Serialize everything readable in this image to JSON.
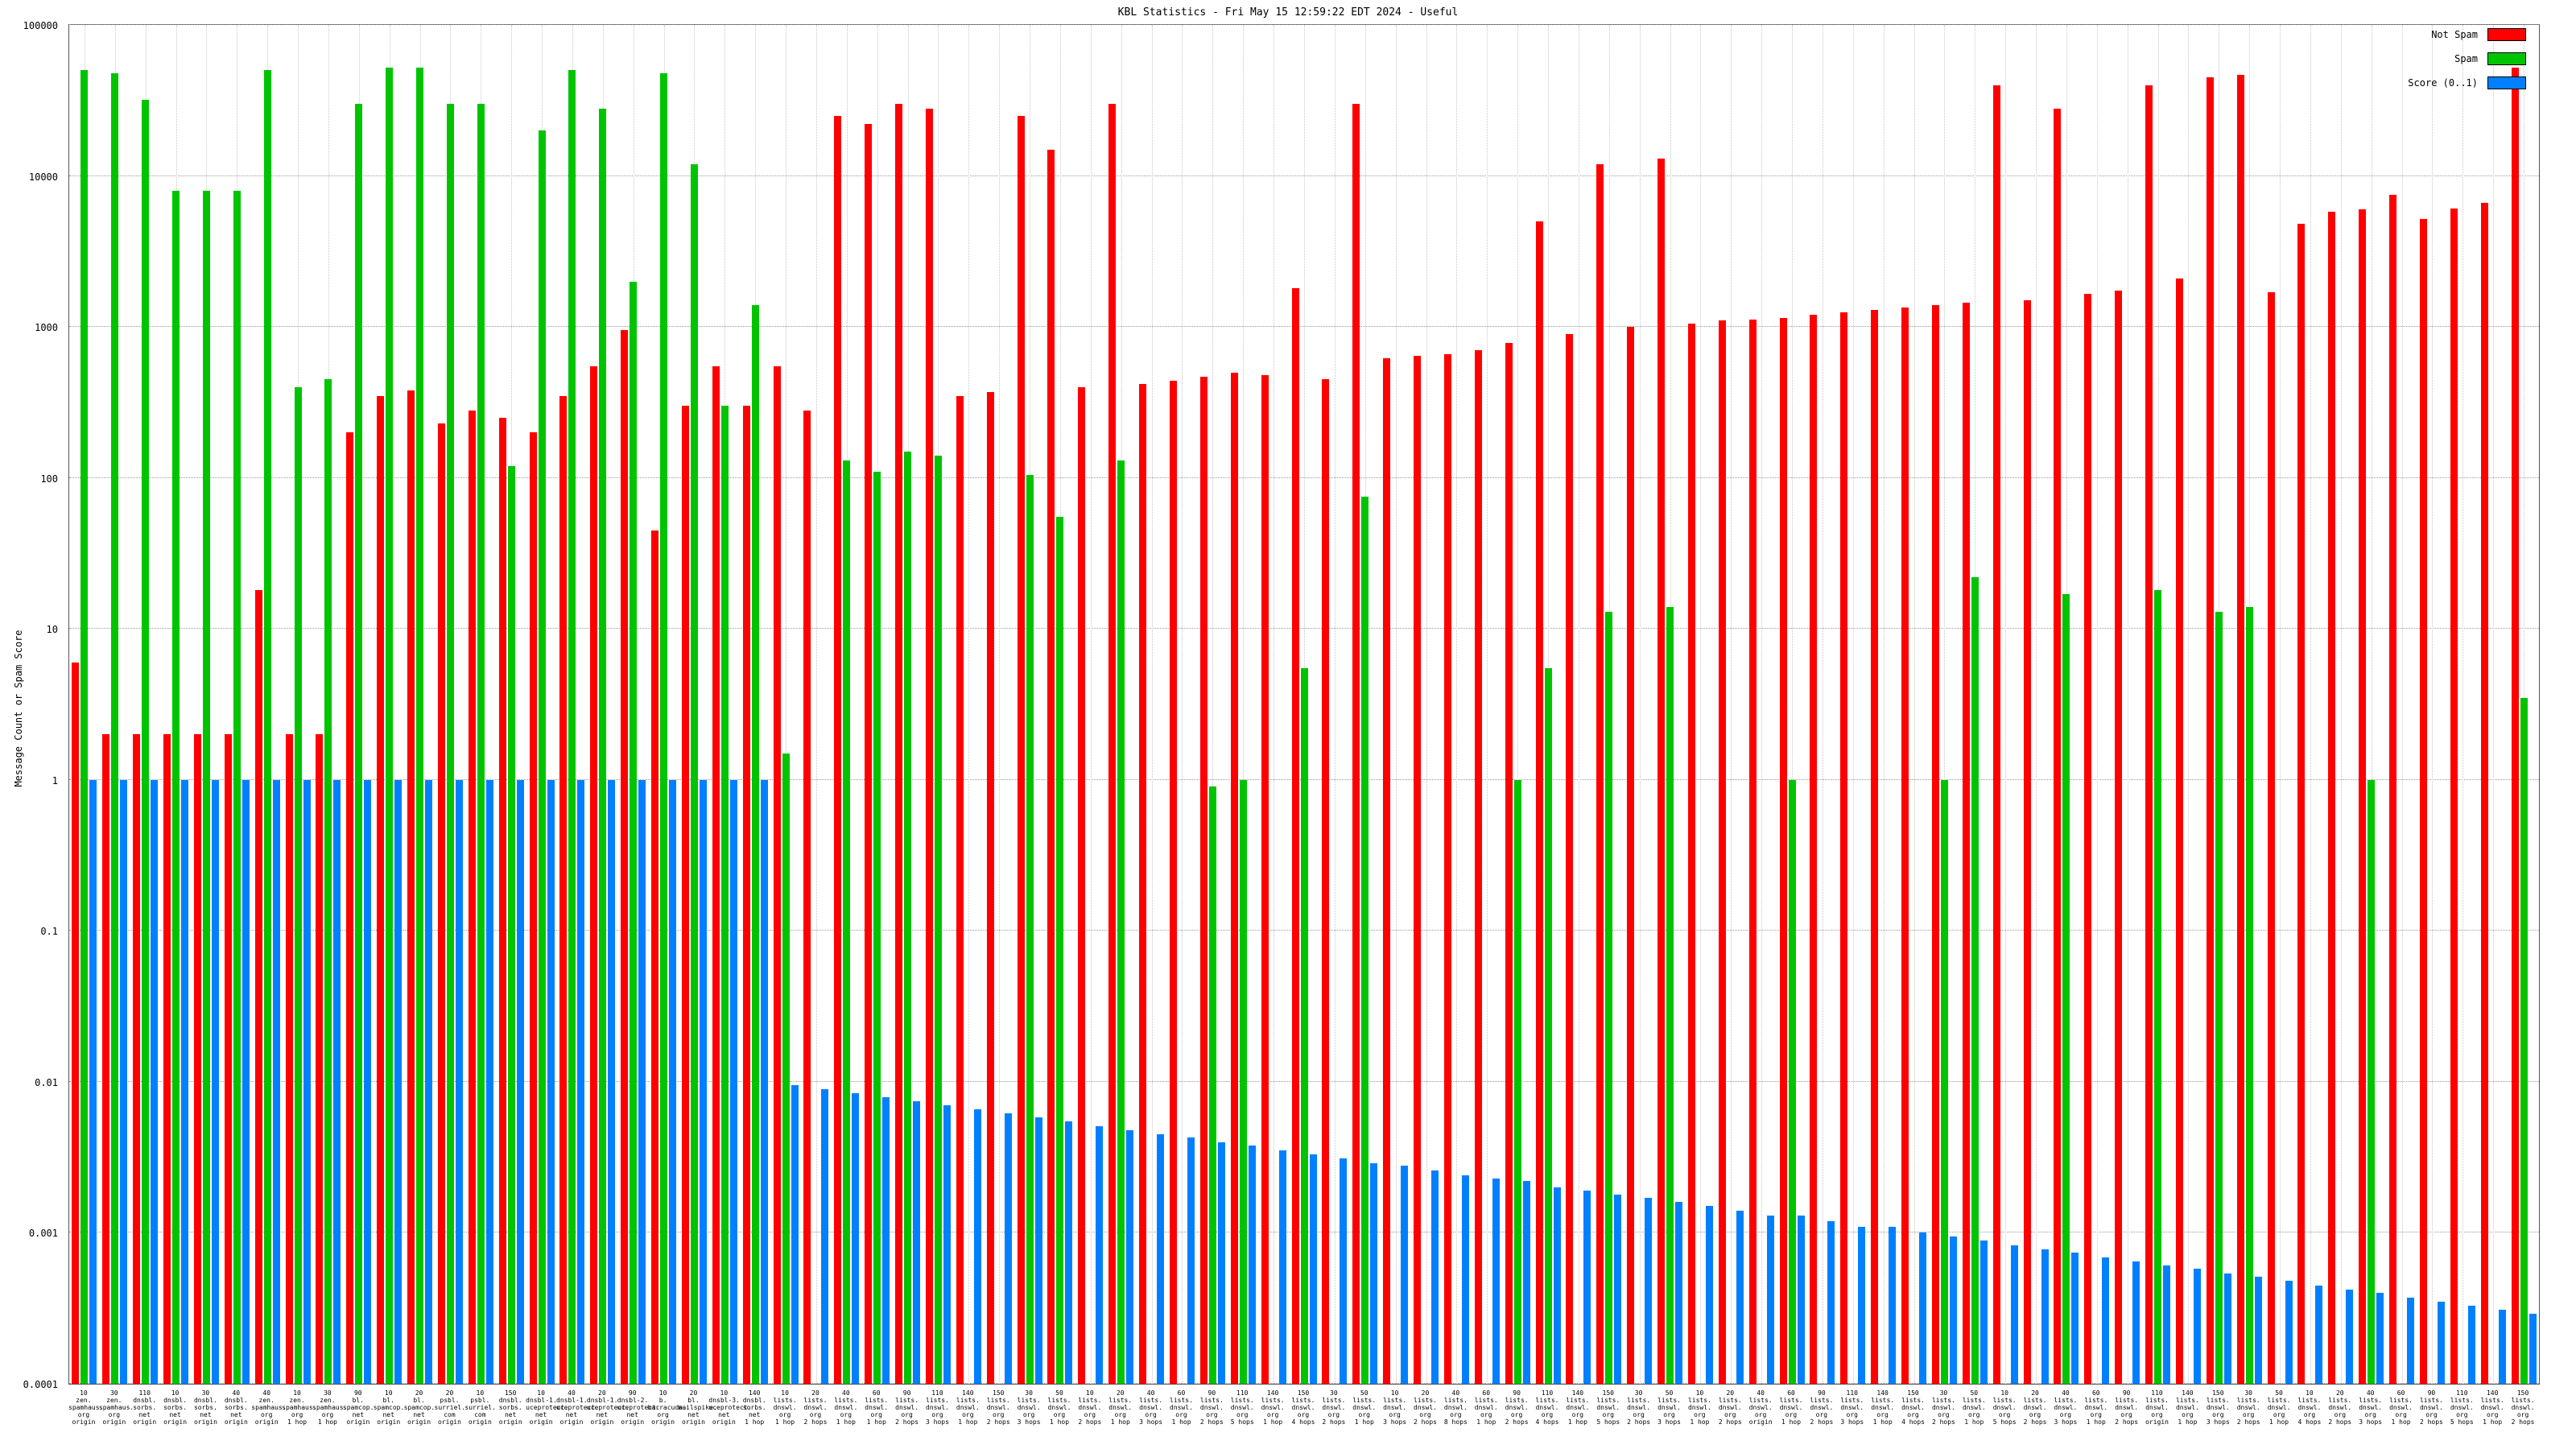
{
  "title": "KBL Statistics - Fri May 15 12:59:22 EDT 2024 - Useful",
  "legend": [
    {
      "label": "Not Spam",
      "color": "#ff0000"
    },
    {
      "label": "Spam",
      "color": "#00c400"
    },
    {
      "label": "Score (0..1)",
      "color": "#0080ff"
    }
  ],
  "chart_data": {
    "type": "bar",
    "title": "KBL Statistics - Fri May 15 12:59:22 EDT 2024 - Useful",
    "xlabel": "",
    "ylabel": "Message Count or Spam Score",
    "y_scale": "log",
    "ylim": [
      0.0001,
      100000
    ],
    "y_ticks": [
      "100000",
      "10000",
      "1000",
      "100",
      "10",
      "1",
      "0.1",
      "0.01",
      "0.001",
      "0.0001"
    ],
    "grid": "dotted",
    "legend_position": "top-right",
    "categories": [
      "10|zen.|spamhaus.|org|origin",
      "30|zen.|spamhaus.|org|origin",
      "110|dnsbl.|sorbs.|net|origin",
      "10|dnsbl.|sorbs.|net|origin",
      "30|dnsbl.|sorbs.|net|origin",
      "40|dnsbl.|sorbs.|net|origin",
      "40|zen.|spamhaus.|org|origin",
      "10|zen.|spamhaus.|org|1 hop",
      "30|zen.|spamhaus.|org|1 hop",
      "90|bl.|spamcop.|net|origin",
      "10|bl.|spamcop.|net|origin",
      "20|bl.|spamcop.|net|origin",
      "20|psbl.|surriel.|com|origin",
      "10|psbl.|surriel.|com|origin",
      "150|dnsbl.|sorbs.|net|origin",
      "10|dnsbl-1.|uceprotect.|net|origin",
      "40|dnsbl-1.|uceprotect.|net|origin",
      "20|dnsbl-1.|uceprotect.|net|origin",
      "90|dnsbl-2.|uceprotect.|net|origin",
      "10|b.|barracuda.|org|origin",
      "20|bl.|mailspike.|net|origin",
      "10|dnsbl-3.|uceprotect.|net|origin",
      "140|dnsbl.|sorbs.|net|1 hop",
      "10|lists.|dnswl.|org|1 hop",
      "20|lists.|dnswl.|org|2 hops",
      "40|lists.|dnswl.|org|1 hop",
      "60|lists.|dnswl.|org|1 hop",
      "90|lists.|dnswl.|org|2 hops",
      "110|lists.|dnswl.|org|3 hops",
      "140|lists.|dnswl.|org|1 hop",
      "150|lists.|dnswl.|org|2 hops",
      "30|lists.|dnswl.|org|3 hops",
      "50|lists.|dnswl.|org|1 hop",
      "10|lists.|dnswl.|org|2 hops",
      "20|lists.|dnswl.|org|1 hop",
      "40|lists.|dnswl.|org|3 hops",
      "60|lists.|dnswl.|org|1 hop",
      "90|lists.|dnswl.|org|2 hops",
      "110|lists.|dnswl.|org|5 hops",
      "140|lists.|dnswl.|org|1 hop",
      "150|lists.|dnswl.|org|4 hops",
      "30|lists.|dnswl.|org|2 hops",
      "50|lists.|dnswl.|org|1 hop",
      "10|lists.|dnswl.|org|3 hops",
      "20|lists.|dnswl.|org|2 hops",
      "40|lists.|dnswl.|org|8 hops",
      "60|lists.|dnswl.|org|1 hop",
      "90|lists.|dnswl.|org|2 hops",
      "110|lists.|dnswl.|org|4 hops",
      "140|lists.|dnswl.|org|1 hop",
      "150|lists.|dnswl.|org|5 hops",
      "30|lists.|dnswl.|org|2 hops",
      "50|lists.|dnswl.|org|3 hops",
      "10|lists.|dnswl.|org|1 hop",
      "20|lists.|dnswl.|org|2 hops",
      "40|lists.|dnswl.|org|origin",
      "60|lists.|dnswl.|org|1 hop",
      "90|lists.|dnswl.|org|2 hops",
      "110|lists.|dnswl.|org|3 hops",
      "140|lists.|dnswl.|org|1 hop",
      "150|lists.|dnswl.|org|4 hops",
      "30|lists.|dnswl.|org|2 hops",
      "50|lists.|dnswl.|org|1 hop",
      "10|lists.|dnswl.|org|5 hops",
      "20|lists.|dnswl.|org|2 hops",
      "40|lists.|dnswl.|org|3 hops",
      "60|lists.|dnswl.|org|1 hop",
      "90|lists.|dnswl.|org|2 hops",
      "110|lists.|dnswl.|org|origin",
      "140|lists.|dnswl.|org|1 hop",
      "150|lists.|dnswl.|org|3 hops",
      "30|lists.|dnswl.|org|2 hops",
      "50|lists.|dnswl.|org|1 hop",
      "10|lists.|dnswl.|org|4 hops",
      "20|lists.|dnswl.|org|2 hops",
      "40|lists.|dnswl.|org|3 hops",
      "60|lists.|dnswl.|org|1 hop",
      "90|lists.|dnswl.|org|2 hops",
      "110|lists.|dnswl.|org|5 hops",
      "140|lists.|dnswl.|org|1 hop",
      "150|lists.|dnswl.|org|2 hops"
    ],
    "series": [
      {
        "name": "Not Spam",
        "key": "not-spam",
        "color": "#ff0000",
        "values": [
          6,
          2,
          2,
          2,
          2,
          2,
          18,
          2,
          2,
          200,
          350,
          380,
          230,
          280,
          250,
          200,
          350,
          550,
          950,
          45,
          300,
          550,
          300,
          550,
          280,
          25000,
          22000,
          30000,
          28000,
          350,
          370,
          25000,
          15000,
          400,
          30000,
          420,
          440,
          470,
          500,
          480,
          1800,
          450,
          30000,
          620,
          640,
          660,
          700,
          780,
          5000,
          900,
          12000,
          1000,
          13000,
          1050,
          1100,
          1120,
          1150,
          1200,
          1250,
          1300,
          1350,
          1400,
          1450,
          40000,
          1500,
          28000,
          1650,
          1750,
          40000,
          2100,
          45000,
          47000,
          1700,
          4800,
          5800,
          6000,
          7500,
          5200,
          6100,
          6600,
          52000
        ]
      },
      {
        "name": "Spam",
        "key": "spam",
        "color": "#00c400",
        "values": [
          50000,
          48000,
          32000,
          8000,
          8000,
          8000,
          50000,
          400,
          450,
          30000,
          52000,
          52000,
          30000,
          30000,
          120,
          20000,
          50000,
          28000,
          2000,
          48000,
          12000,
          300,
          1400,
          1.5,
          0,
          130,
          110,
          150,
          140,
          0,
          0,
          105,
          55,
          0,
          130,
          0,
          0,
          0.9,
          1,
          0,
          5.5,
          0,
          75,
          0,
          0,
          0,
          0,
          1,
          5.5,
          0,
          13,
          0,
          14,
          0,
          0,
          0,
          1,
          0,
          0,
          0,
          0,
          1,
          22,
          0,
          0,
          17,
          0,
          0,
          18,
          0,
          13,
          14,
          0,
          0,
          0,
          1,
          0,
          0,
          0,
          0,
          3.5
        ]
      },
      {
        "name": "Score (0..1)",
        "key": "score",
        "color": "#0080ff",
        "values": [
          1,
          1,
          1,
          1,
          1,
          1,
          1,
          1,
          1,
          1,
          1,
          1,
          1,
          1,
          1,
          1,
          1,
          1,
          1,
          1,
          1,
          1,
          1,
          0.0095,
          0.0089,
          0.0084,
          0.0079,
          0.0074,
          0.007,
          0.0066,
          0.0062,
          0.0058,
          0.0055,
          0.0051,
          0.0048,
          0.0045,
          0.0043,
          0.004,
          0.0038,
          0.0035,
          0.0033,
          0.0031,
          0.0029,
          0.0028,
          0.0026,
          0.0024,
          0.0023,
          0.0022,
          0.002,
          0.0019,
          0.0018,
          0.0017,
          0.0016,
          0.0015,
          0.0014,
          0.0013,
          0.0013,
          0.0012,
          0.0011,
          0.0011,
          0.001,
          0.00094,
          0.00089,
          0.00083,
          0.00078,
          0.00074,
          0.00069,
          0.00065,
          0.00061,
          0.00058,
          0.00054,
          0.00051,
          0.00048,
          0.00045,
          0.00042,
          0.0004,
          0.00037,
          0.00035,
          0.00033,
          0.00031,
          0.00029
        ]
      }
    ]
  }
}
